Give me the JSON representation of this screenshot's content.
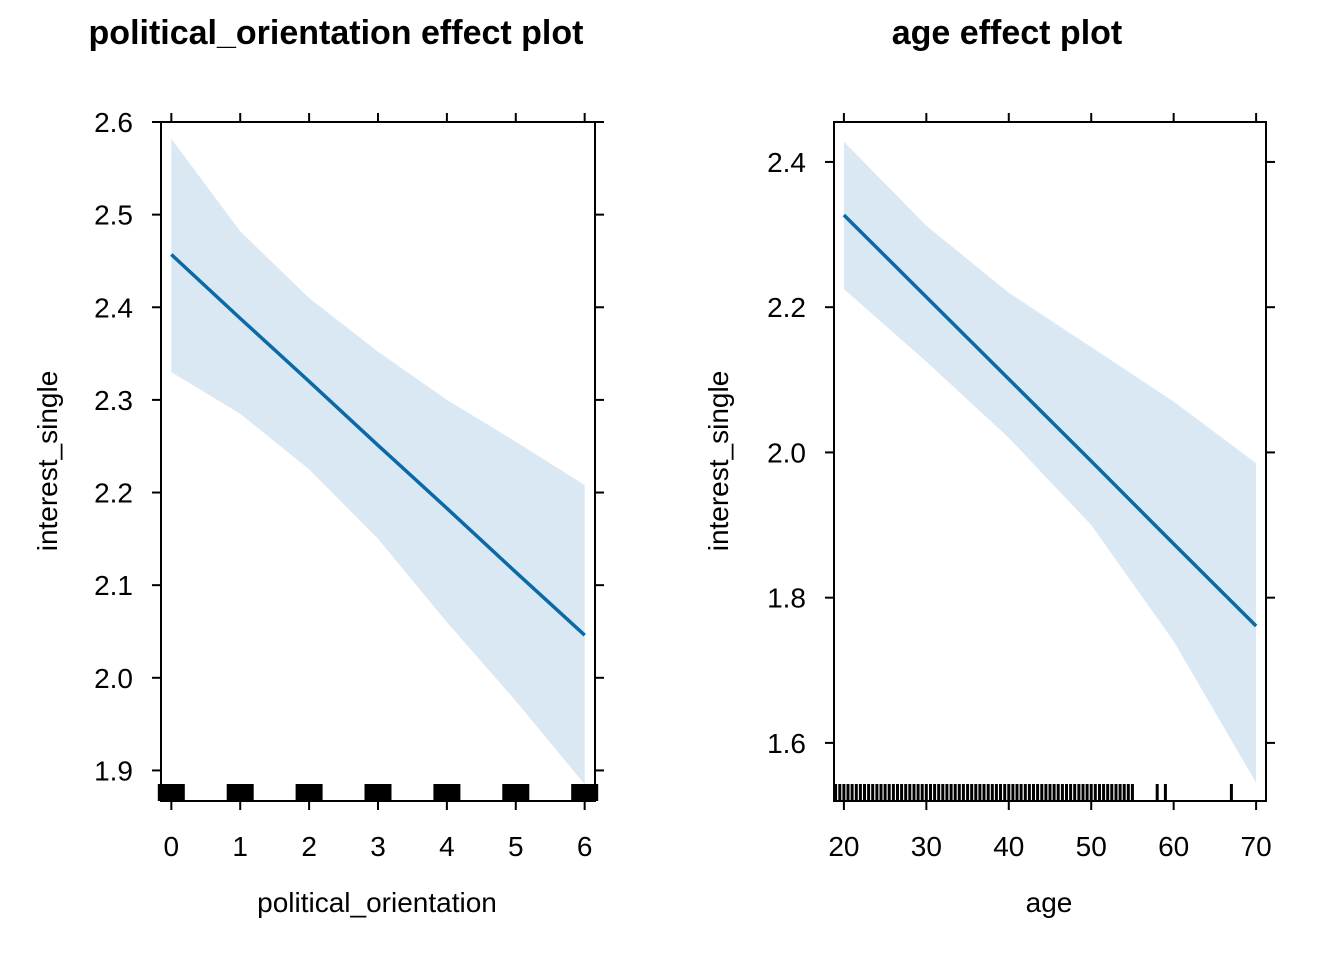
{
  "chart_data": [
    {
      "type": "line",
      "title": "political_orientation effect plot",
      "xlabel": "political_orientation",
      "ylabel": "interest_single",
      "xlim": [
        -0.15,
        6.15
      ],
      "ylim": [
        1.867,
        2.6
      ],
      "x_ticks": [
        0,
        1,
        2,
        3,
        4,
        5,
        6
      ],
      "y_ticks": [
        1.9,
        2.0,
        2.1,
        2.2,
        2.3,
        2.4,
        2.5,
        2.6
      ],
      "x_tick_labels": [
        "0",
        "1",
        "2",
        "3",
        "4",
        "5",
        "6"
      ],
      "y_tick_labels": [
        "1.9",
        "2.0",
        "2.1",
        "2.2",
        "2.3",
        "2.4",
        "2.5",
        "2.6"
      ],
      "series": [
        {
          "x": [
            0,
            1,
            2,
            3,
            4,
            5,
            6
          ],
          "values": [
            2.457,
            2.388,
            2.32,
            2.251,
            2.183,
            2.114,
            2.046
          ],
          "lower": [
            2.33,
            2.285,
            2.225,
            2.15,
            2.06,
            1.975,
            1.885
          ],
          "upper": [
            2.582,
            2.482,
            2.41,
            2.352,
            2.3,
            2.255,
            2.208
          ]
        }
      ],
      "rug": [
        0,
        1,
        2,
        3,
        4,
        5,
        6
      ],
      "colors": {
        "line": "#0a6aa6",
        "band": "#dae8f4"
      }
    },
    {
      "type": "line",
      "title": "age effect plot",
      "xlabel": "age",
      "ylabel": "interest_single",
      "xlim": [
        18.8,
        71.2
      ],
      "ylim": [
        1.52,
        2.455
      ],
      "x_ticks": [
        20,
        30,
        40,
        50,
        60,
        70
      ],
      "y_ticks": [
        1.6,
        1.8,
        2.0,
        2.2,
        2.4
      ],
      "x_tick_labels": [
        "20",
        "30",
        "40",
        "50",
        "60",
        "70"
      ],
      "y_tick_labels": [
        "1.6",
        "1.8",
        "2.0",
        "2.2",
        "2.4"
      ],
      "series": [
        {
          "x": [
            20,
            30,
            40,
            50,
            60,
            70
          ],
          "values": [
            2.327,
            2.214,
            2.101,
            1.988,
            1.874,
            1.761
          ],
          "lower": [
            2.225,
            2.125,
            2.02,
            1.9,
            1.74,
            1.545
          ],
          "upper": [
            2.428,
            2.312,
            2.22,
            2.145,
            2.07,
            1.985
          ]
        }
      ],
      "rug": [
        19,
        19.5,
        20,
        20.5,
        21,
        21.5,
        22,
        22.5,
        23,
        23.5,
        24,
        24.5,
        25,
        25.5,
        26,
        26.5,
        27,
        27.5,
        28,
        28.5,
        29,
        29.5,
        30,
        30.5,
        31,
        31.5,
        32,
        32.5,
        33,
        33.5,
        34,
        34.5,
        35,
        35.5,
        36,
        36.5,
        37,
        37.5,
        38,
        38.5,
        39,
        39.5,
        40,
        40.5,
        41,
        41.5,
        42,
        42.5,
        43,
        43.5,
        44,
        44.5,
        45,
        45.5,
        46,
        46.5,
        47,
        47.5,
        48,
        48.5,
        49,
        49.5,
        50,
        50.5,
        51,
        51.5,
        52,
        52.5,
        53,
        53.5,
        54,
        54.5,
        55,
        58,
        59,
        67
      ],
      "colors": {
        "line": "#0a6aa6",
        "band": "#dae8f4"
      }
    }
  ]
}
